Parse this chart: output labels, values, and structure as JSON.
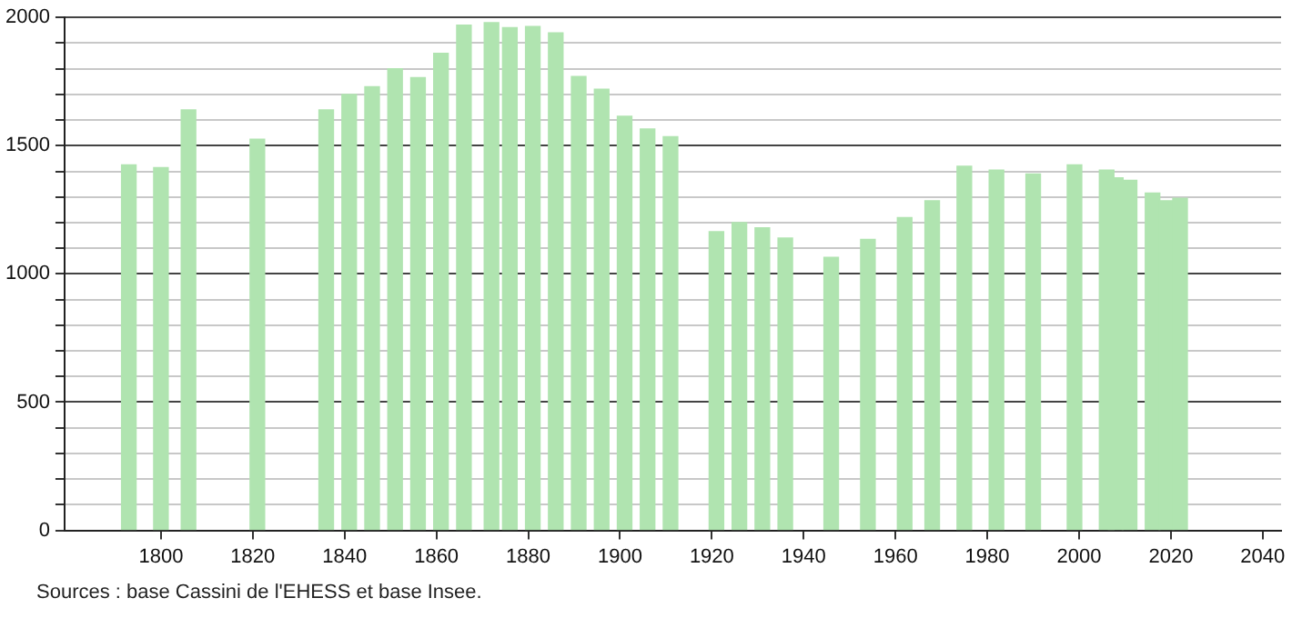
{
  "chart_data": {
    "type": "bar",
    "color": "#b0e4b0",
    "x": [
      1793,
      1800,
      1806,
      1821,
      1836,
      1841,
      1846,
      1851,
      1856,
      1861,
      1866,
      1872,
      1876,
      1881,
      1886,
      1891,
      1896,
      1901,
      1906,
      1911,
      1921,
      1926,
      1931,
      1936,
      1946,
      1954,
      1962,
      1968,
      1975,
      1982,
      1990,
      1999,
      2006,
      2008,
      2011,
      2016,
      2019,
      2022
    ],
    "values": [
      1425,
      1415,
      1640,
      1525,
      1640,
      1700,
      1730,
      1800,
      1765,
      1860,
      1970,
      1980,
      1960,
      1965,
      1940,
      1770,
      1720,
      1615,
      1565,
      1535,
      1165,
      1200,
      1180,
      1140,
      1065,
      1135,
      1220,
      1285,
      1420,
      1405,
      1390,
      1425,
      1405,
      1375,
      1365,
      1315,
      1285,
      1295
    ],
    "xlim": [
      1779,
      2044
    ],
    "xticks": [
      1800,
      1820,
      1840,
      1860,
      1880,
      1900,
      1920,
      1940,
      1960,
      1980,
      2000,
      2020,
      2040
    ],
    "ylim": [
      0,
      2000
    ],
    "yticks": [
      0,
      {
        "value": 100,
        "label": null
      },
      {
        "value": 200,
        "label": null
      },
      {
        "value": 300,
        "label": null
      },
      {
        "value": 400,
        "label": null
      },
      500,
      {
        "value": 600,
        "label": null
      },
      {
        "value": 700,
        "label": null
      },
      {
        "value": 800,
        "label": null
      },
      {
        "value": 900,
        "label": null
      },
      1000,
      {
        "value": 1100,
        "label": null
      },
      {
        "value": 1200,
        "label": null
      },
      {
        "value": 1300,
        "label": null
      },
      {
        "value": 1400,
        "label": null
      },
      1500,
      {
        "value": 1600,
        "label": null
      },
      {
        "value": 1700,
        "label": null
      },
      {
        "value": 1800,
        "label": null
      },
      {
        "value": 1900,
        "label": null
      },
      2000
    ],
    "grid": "y",
    "annotations": [
      "Sources : base Cassini de l'EHESS et base Insee."
    ]
  }
}
